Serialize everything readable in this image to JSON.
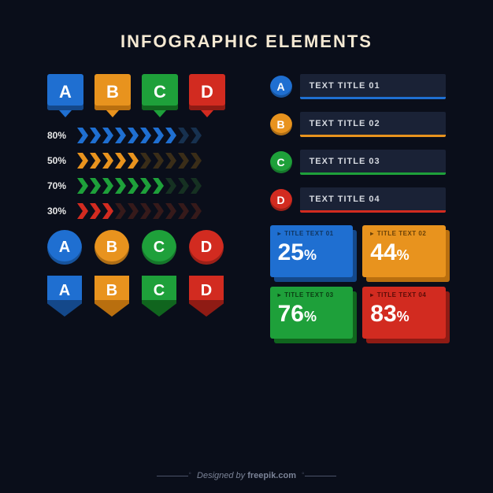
{
  "title": "INFOGRAPHIC ELEMENTS",
  "background_color": "#0a0e1a",
  "palette": {
    "blue": {
      "fill": "#1f6fd1",
      "dark": "#14488a",
      "dim": "#17314f"
    },
    "orange": {
      "fill": "#e8931e",
      "dark": "#b96f0f",
      "dim": "#3a2d18"
    },
    "green": {
      "fill": "#1ea03a",
      "dark": "#10651e",
      "dim": "#163122"
    },
    "red": {
      "fill": "#d22b20",
      "dark": "#8f1b14",
      "dim": "#361a1a"
    }
  },
  "letters": [
    "A",
    "B",
    "C",
    "D"
  ],
  "letter_colors": [
    "blue",
    "orange",
    "green",
    "red"
  ],
  "chevron_bars": [
    {
      "label": "80%",
      "value": 80,
      "color": "blue"
    },
    {
      "label": "50%",
      "value": 50,
      "color": "orange"
    },
    {
      "label": "70%",
      "value": 70,
      "color": "green"
    },
    {
      "label": "30%",
      "value": 30,
      "color": "red"
    }
  ],
  "chevron_segments": 10,
  "title_bars": [
    {
      "letter": "A",
      "label": "TEXT TITLE 01",
      "color": "blue"
    },
    {
      "letter": "B",
      "label": "TEXT TITLE 02",
      "color": "orange"
    },
    {
      "letter": "C",
      "label": "TEXT TITLE 03",
      "color": "green"
    },
    {
      "letter": "D",
      "label": "TEXT TITLE 04",
      "color": "red"
    }
  ],
  "title_bar_bg": "#1a2236",
  "pct_panels": [
    {
      "title": "TITLE TEXT 01",
      "value": "25",
      "color": "blue",
      "title_color": "#10355f",
      "text_color": "#ffffff"
    },
    {
      "title": "TITLE TEXT 02",
      "value": "44",
      "color": "orange",
      "title_color": "#6b4208",
      "text_color": "#ffffff"
    },
    {
      "title": "TITLE TEXT 03",
      "value": "76",
      "color": "green",
      "title_color": "#0a3d12",
      "text_color": "#ffffff"
    },
    {
      "title": "TITLE TEXT 04",
      "value": "83",
      "color": "red",
      "title_color": "#5a0d08",
      "text_color": "#ffffff"
    }
  ],
  "credit_prefix": "Designed by ",
  "credit_brand": "freepik.com"
}
